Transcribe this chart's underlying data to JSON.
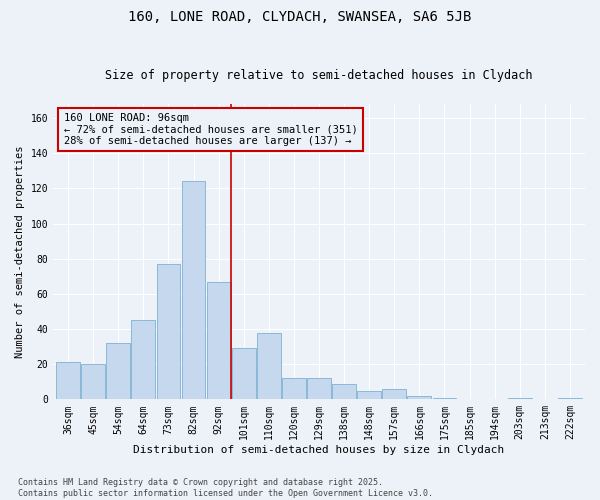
{
  "title1": "160, LONE ROAD, CLYDACH, SWANSEA, SA6 5JB",
  "title2": "Size of property relative to semi-detached houses in Clydach",
  "xlabel": "Distribution of semi-detached houses by size in Clydach",
  "ylabel": "Number of semi-detached properties",
  "categories": [
    "36sqm",
    "45sqm",
    "54sqm",
    "64sqm",
    "73sqm",
    "82sqm",
    "92sqm",
    "101sqm",
    "110sqm",
    "120sqm",
    "129sqm",
    "138sqm",
    "148sqm",
    "157sqm",
    "166sqm",
    "175sqm",
    "185sqm",
    "194sqm",
    "203sqm",
    "213sqm",
    "222sqm"
  ],
  "values": [
    21,
    20,
    32,
    45,
    77,
    124,
    67,
    29,
    38,
    12,
    12,
    9,
    5,
    6,
    2,
    1,
    0,
    0,
    1,
    0,
    1
  ],
  "bar_color": "#C5D8EE",
  "bar_edge_color": "#6AA7CC",
  "background_color": "#EDF1F8",
  "grid_color": "#FFFFFF",
  "vline_x": 6.5,
  "vline_color": "#CC0000",
  "annotation_title": "160 LONE ROAD: 96sqm",
  "annotation_line1": "← 72% of semi-detached houses are smaller (351)",
  "annotation_line2": "28% of semi-detached houses are larger (137) →",
  "annotation_box_color": "#CC0000",
  "ylim": [
    0,
    168
  ],
  "yticks": [
    0,
    20,
    40,
    60,
    80,
    100,
    120,
    140,
    160
  ],
  "footer": "Contains HM Land Registry data © Crown copyright and database right 2025.\nContains public sector information licensed under the Open Government Licence v3.0.",
  "title1_fontsize": 10,
  "title2_fontsize": 8.5,
  "xlabel_fontsize": 8,
  "ylabel_fontsize": 7.5,
  "tick_fontsize": 7,
  "annotation_fontsize": 7.5,
  "footer_fontsize": 6
}
